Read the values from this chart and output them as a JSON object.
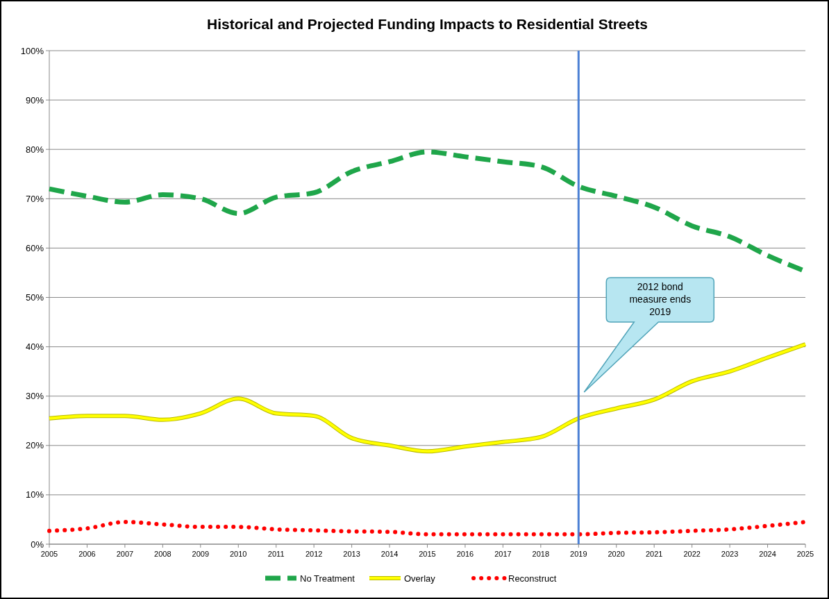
{
  "chart_data": {
    "type": "line",
    "title": "Historical and Projected Funding Impacts to Residential Streets",
    "x": [
      2005,
      2006,
      2007,
      2008,
      2009,
      2010,
      2011,
      2012,
      2013,
      2014,
      2015,
      2016,
      2017,
      2018,
      2019,
      2020,
      2021,
      2022,
      2023,
      2024,
      2025
    ],
    "series": [
      {
        "name": "No Treatment",
        "color": "#1fa64a",
        "line_style": "dashed",
        "values": [
          72,
          70.5,
          69.3,
          70.8,
          70,
          67,
          70.3,
          71.2,
          75.5,
          77.5,
          79.5,
          78.5,
          77.5,
          76.5,
          72.5,
          70.5,
          68.3,
          64.5,
          62.3,
          58.5,
          55.3
        ]
      },
      {
        "name": "Overlay",
        "color": "#ffff00",
        "line_style": "solid",
        "values": [
          25.5,
          26,
          26,
          25.2,
          26.5,
          29.5,
          26.5,
          26,
          21.5,
          20,
          18.8,
          19.8,
          20.7,
          21.7,
          25.5,
          27.5,
          29.3,
          33,
          35,
          37.8,
          40.5
        ]
      },
      {
        "name": "Reconstruct",
        "color": "#ff0000",
        "line_style": "dotted",
        "values": [
          2.7,
          3.2,
          4.5,
          4,
          3.5,
          3.5,
          3,
          2.8,
          2.6,
          2.5,
          2,
          2,
          2,
          2,
          2,
          2.3,
          2.4,
          2.7,
          3,
          3.7,
          4.5
        ]
      }
    ],
    "xlim": [
      2005,
      2025
    ],
    "xticks": [
      2005,
      2006,
      2007,
      2008,
      2009,
      2010,
      2011,
      2012,
      2013,
      2014,
      2015,
      2016,
      2017,
      2018,
      2019,
      2020,
      2021,
      2022,
      2023,
      2024,
      2025
    ],
    "ylim": [
      0,
      100
    ],
    "yticks": [
      {
        "value": 0,
        "label": "0%"
      },
      {
        "value": 10,
        "label": "10%"
      },
      {
        "value": 20,
        "label": "20%"
      },
      {
        "value": 30,
        "label": "30%"
      },
      {
        "value": 40,
        "label": "40%"
      },
      {
        "value": 50,
        "label": "50%"
      },
      {
        "value": 60,
        "label": "60%"
      },
      {
        "value": 70,
        "label": "70%"
      },
      {
        "value": 80,
        "label": "80%"
      },
      {
        "value": 90,
        "label": "90%"
      },
      {
        "value": 100,
        "label": "100%"
      }
    ],
    "grid": "y",
    "legend": "bottom",
    "ref_lines": [
      {
        "axis": "x",
        "value": 2019,
        "color": "#4a7fd4"
      }
    ],
    "annotations": [
      "2012 bond measure ends 2019"
    ]
  }
}
